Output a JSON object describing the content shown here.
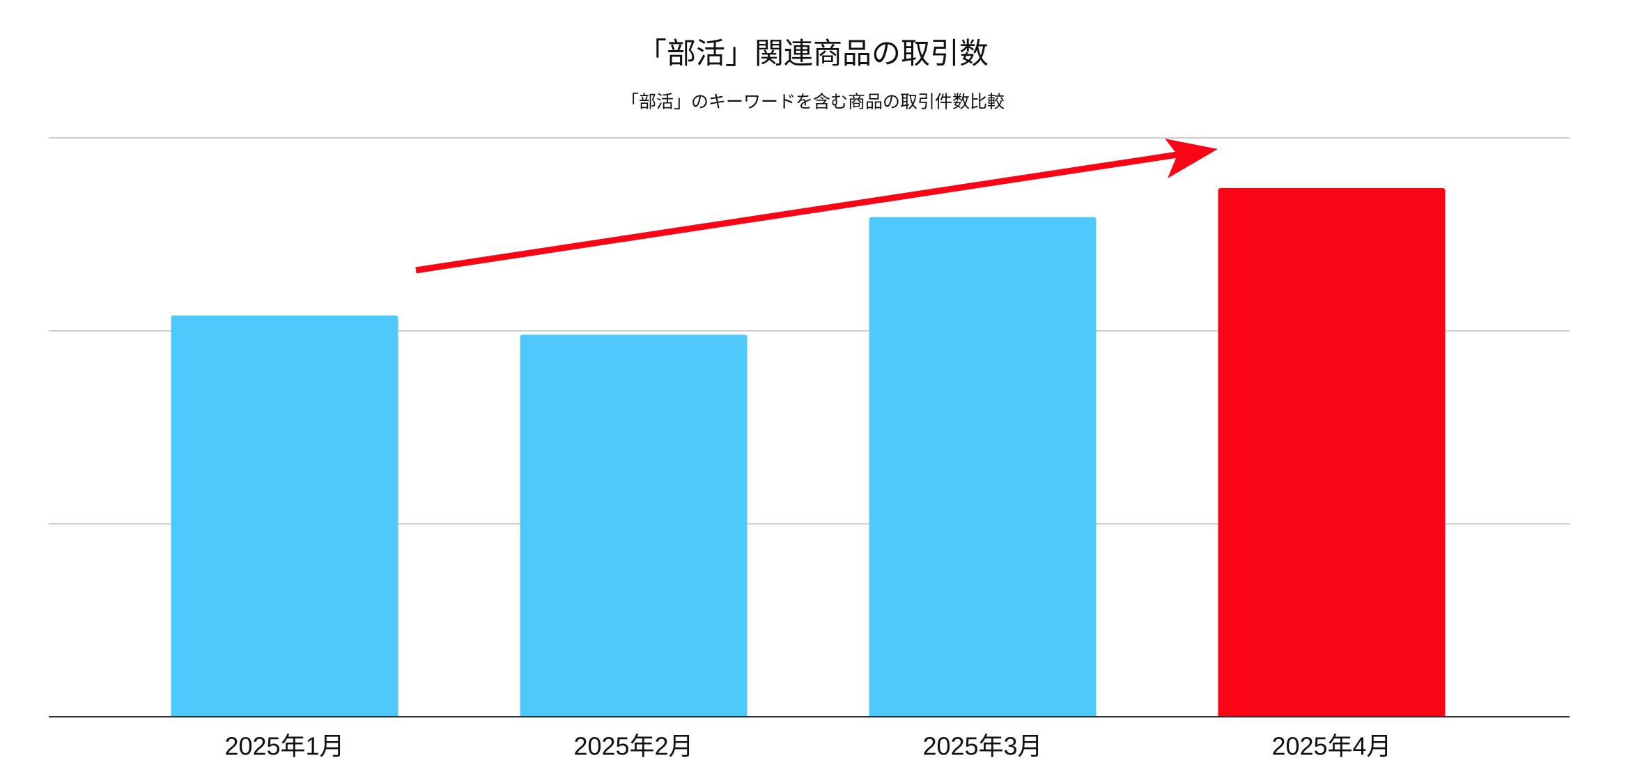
{
  "chart_data": {
    "type": "bar",
    "title": "「部活」関連商品の取引数",
    "subtitle": "「部活」のキーワードを含む商品の取引件数比較",
    "categories": [
      "2025年1月",
      "2025年2月",
      "2025年3月",
      "2025年4月"
    ],
    "values": [
      2.08,
      1.98,
      2.59,
      2.74
    ],
    "colors": [
      "#4fc9fb",
      "#4fc9fb",
      "#4fc9fb",
      "#f90515"
    ],
    "ylim": [
      0,
      3
    ],
    "yticks": [
      1,
      2,
      3
    ],
    "grid": true
  }
}
